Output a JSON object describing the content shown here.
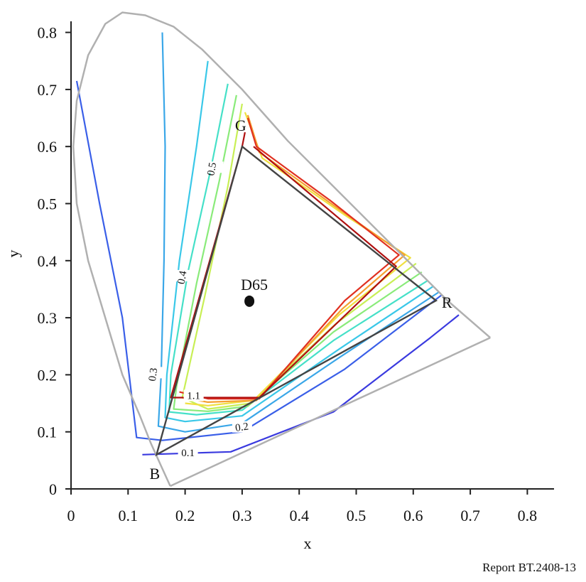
{
  "caption": "Report BT.2408-13",
  "chart_data": {
    "type": "line",
    "title": "",
    "xlabel": "x",
    "ylabel": "y",
    "xlim": [
      0,
      0.85
    ],
    "ylim": [
      0,
      0.85
    ],
    "xticks": [
      "0",
      "0.1",
      "0.2",
      "0.3",
      "0.4",
      "0.5",
      "0.6",
      "0.7",
      "0.8"
    ],
    "yticks": [
      "0",
      "0.1",
      "0.2",
      "0.3",
      "0.4",
      "0.5",
      "0.6",
      "0.7",
      "0.8"
    ],
    "spectral_locus": [
      [
        0.174,
        0.005
      ],
      [
        0.158,
        0.04
      ],
      [
        0.14,
        0.08
      ],
      [
        0.12,
        0.13
      ],
      [
        0.09,
        0.2
      ],
      [
        0.06,
        0.3
      ],
      [
        0.03,
        0.4
      ],
      [
        0.01,
        0.5
      ],
      [
        0.004,
        0.6
      ],
      [
        0.01,
        0.68
      ],
      [
        0.03,
        0.76
      ],
      [
        0.06,
        0.815
      ],
      [
        0.09,
        0.835
      ],
      [
        0.13,
        0.83
      ],
      [
        0.18,
        0.81
      ],
      [
        0.23,
        0.77
      ],
      [
        0.3,
        0.7
      ],
      [
        0.38,
        0.61
      ],
      [
        0.45,
        0.54
      ],
      [
        0.52,
        0.47
      ],
      [
        0.6,
        0.39
      ],
      [
        0.66,
        0.33
      ],
      [
        0.735,
        0.265
      ]
    ],
    "purple_line": [
      [
        0.735,
        0.265
      ],
      [
        0.174,
        0.005
      ]
    ],
    "primaries": {
      "R": [
        0.64,
        0.33
      ],
      "G": [
        0.3,
        0.6
      ],
      "B": [
        0.15,
        0.06
      ]
    },
    "white_point": {
      "label": "D65",
      "x": 0.3127,
      "y": 0.329
    },
    "point_labels": {
      "R": "R",
      "G": "G",
      "B": "B"
    },
    "contours": [
      {
        "label": "0.1",
        "color": "#3a3adf",
        "points": [
          [
            0.125,
            0.06
          ],
          [
            0.28,
            0.065
          ],
          [
            0.46,
            0.135
          ],
          [
            0.63,
            0.265
          ],
          [
            0.68,
            0.305
          ]
        ]
      },
      {
        "label": "",
        "color": "#3a5fe8",
        "points": [
          [
            0.01,
            0.715
          ],
          [
            0.05,
            0.5
          ],
          [
            0.09,
            0.3
          ],
          [
            0.115,
            0.09
          ],
          [
            0.16,
            0.085
          ],
          [
            0.3,
            0.1
          ],
          [
            0.48,
            0.21
          ],
          [
            0.65,
            0.34
          ]
        ]
      },
      {
        "label": "0.2",
        "color": "#3aa7e8",
        "points": [
          [
            0.16,
            0.8
          ],
          [
            0.165,
            0.6
          ],
          [
            0.163,
            0.4
          ],
          [
            0.158,
            0.2
          ],
          [
            0.153,
            0.11
          ],
          [
            0.2,
            0.1
          ],
          [
            0.3,
            0.115
          ],
          [
            0.47,
            0.23
          ],
          [
            0.645,
            0.345
          ]
        ]
      },
      {
        "label": "0.3",
        "color": "#3ac8e8",
        "points": [
          [
            0.24,
            0.75
          ],
          [
            0.22,
            0.6
          ],
          [
            0.19,
            0.4
          ],
          [
            0.168,
            0.2
          ],
          [
            0.165,
            0.125
          ],
          [
            0.2,
            0.118
          ],
          [
            0.3,
            0.128
          ],
          [
            0.47,
            0.245
          ],
          [
            0.635,
            0.355
          ]
        ]
      },
      {
        "label": "0.4",
        "color": "#45e0c8",
        "points": [
          [
            0.275,
            0.71
          ],
          [
            0.245,
            0.56
          ],
          [
            0.205,
            0.38
          ],
          [
            0.175,
            0.2
          ],
          [
            0.172,
            0.135
          ],
          [
            0.22,
            0.13
          ],
          [
            0.3,
            0.138
          ],
          [
            0.46,
            0.26
          ],
          [
            0.625,
            0.365
          ]
        ]
      },
      {
        "label": "0.5",
        "color": "#8aeb7a",
        "points": [
          [
            0.29,
            0.69
          ],
          [
            0.26,
            0.54
          ],
          [
            0.22,
            0.36
          ],
          [
            0.185,
            0.18
          ],
          [
            0.18,
            0.14
          ],
          [
            0.24,
            0.136
          ],
          [
            0.31,
            0.145
          ],
          [
            0.46,
            0.275
          ],
          [
            0.615,
            0.38
          ]
        ]
      },
      {
        "label": "",
        "color": "#c8ef55",
        "points": [
          [
            0.3,
            0.675
          ],
          [
            0.275,
            0.53
          ],
          [
            0.235,
            0.34
          ],
          [
            0.195,
            0.16
          ],
          [
            0.24,
            0.14
          ],
          [
            0.315,
            0.15
          ],
          [
            0.465,
            0.29
          ],
          [
            0.605,
            0.395
          ]
        ]
      },
      {
        "label": "",
        "color": "#f0e040",
        "points": [
          [
            0.305,
            0.66
          ],
          [
            0.335,
            0.58
          ],
          [
            0.48,
            0.48
          ],
          [
            0.595,
            0.405
          ],
          [
            0.47,
            0.305
          ],
          [
            0.32,
            0.155
          ],
          [
            0.24,
            0.146
          ],
          [
            0.2,
            0.15
          ]
        ]
      },
      {
        "label": "",
        "color": "#f5a030",
        "points": [
          [
            0.31,
            0.655
          ],
          [
            0.33,
            0.59
          ],
          [
            0.47,
            0.49
          ],
          [
            0.585,
            0.41
          ],
          [
            0.475,
            0.315
          ],
          [
            0.325,
            0.155
          ],
          [
            0.24,
            0.152
          ],
          [
            0.195,
            0.16
          ]
        ]
      },
      {
        "label": "1.1",
        "color": "#e03020",
        "points": [
          [
            0.31,
            0.65
          ],
          [
            0.325,
            0.6
          ],
          [
            0.455,
            0.505
          ],
          [
            0.575,
            0.41
          ],
          [
            0.48,
            0.33
          ],
          [
            0.33,
            0.158
          ],
          [
            0.24,
            0.158
          ],
          [
            0.19,
            0.17
          ]
        ]
      },
      {
        "label": "",
        "color": "#b01010",
        "points": [
          [
            0.305,
            0.625
          ],
          [
            0.3,
            0.6
          ],
          [
            0.175,
            0.16
          ],
          [
            0.24,
            0.16
          ],
          [
            0.33,
            0.16
          ],
          [
            0.57,
            0.39
          ],
          [
            0.32,
            0.6
          ]
        ]
      }
    ]
  }
}
